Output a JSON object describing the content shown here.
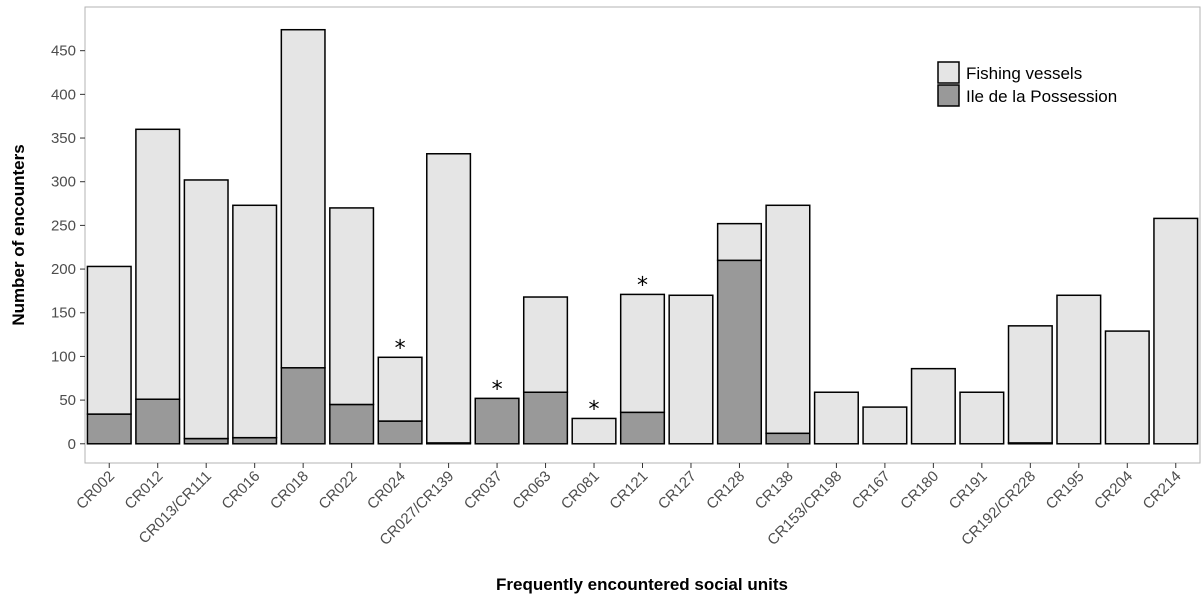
{
  "chart_data": {
    "type": "bar",
    "stacked": true,
    "xlabel": "Frequently encountered social units",
    "ylabel": "Number of encounters",
    "ylim": [
      -22,
      500
    ],
    "yticks": [
      0,
      50,
      100,
      150,
      200,
      250,
      300,
      350,
      400,
      450
    ],
    "grid": false,
    "legend_position": "top-right",
    "categories": [
      "CR002",
      "CR012",
      "CR013/CR111",
      "CR016",
      "CR018",
      "CR022",
      "CR024",
      "CR027/CR139",
      "CR037",
      "CR063",
      "CR081",
      "CR121",
      "CR127",
      "CR128",
      "CR138",
      "CR153/CR198",
      "CR167",
      "CR180",
      "CR191",
      "CR192/CR228",
      "CR195",
      "CR204",
      "CR214"
    ],
    "series": [
      {
        "name": "Ile de la Possession",
        "color": "#999999",
        "values": [
          34,
          51,
          6,
          7,
          87,
          45,
          26,
          1,
          52,
          59,
          0,
          36,
          0,
          210,
          12,
          0,
          0,
          0,
          0,
          1,
          0,
          0,
          0
        ]
      },
      {
        "name": "Fishing vessels",
        "color": "#e5e5e5",
        "values": [
          169,
          309,
          296,
          266,
          387,
          225,
          73,
          331,
          0,
          109,
          29,
          135,
          170,
          42,
          261,
          59,
          42,
          86,
          59,
          134,
          170,
          129,
          258
        ]
      }
    ],
    "annotations": [
      {
        "category": "CR024",
        "text": "*"
      },
      {
        "category": "CR037",
        "text": "*"
      },
      {
        "category": "CR081",
        "text": "*"
      },
      {
        "category": "CR121",
        "text": "*"
      }
    ]
  }
}
